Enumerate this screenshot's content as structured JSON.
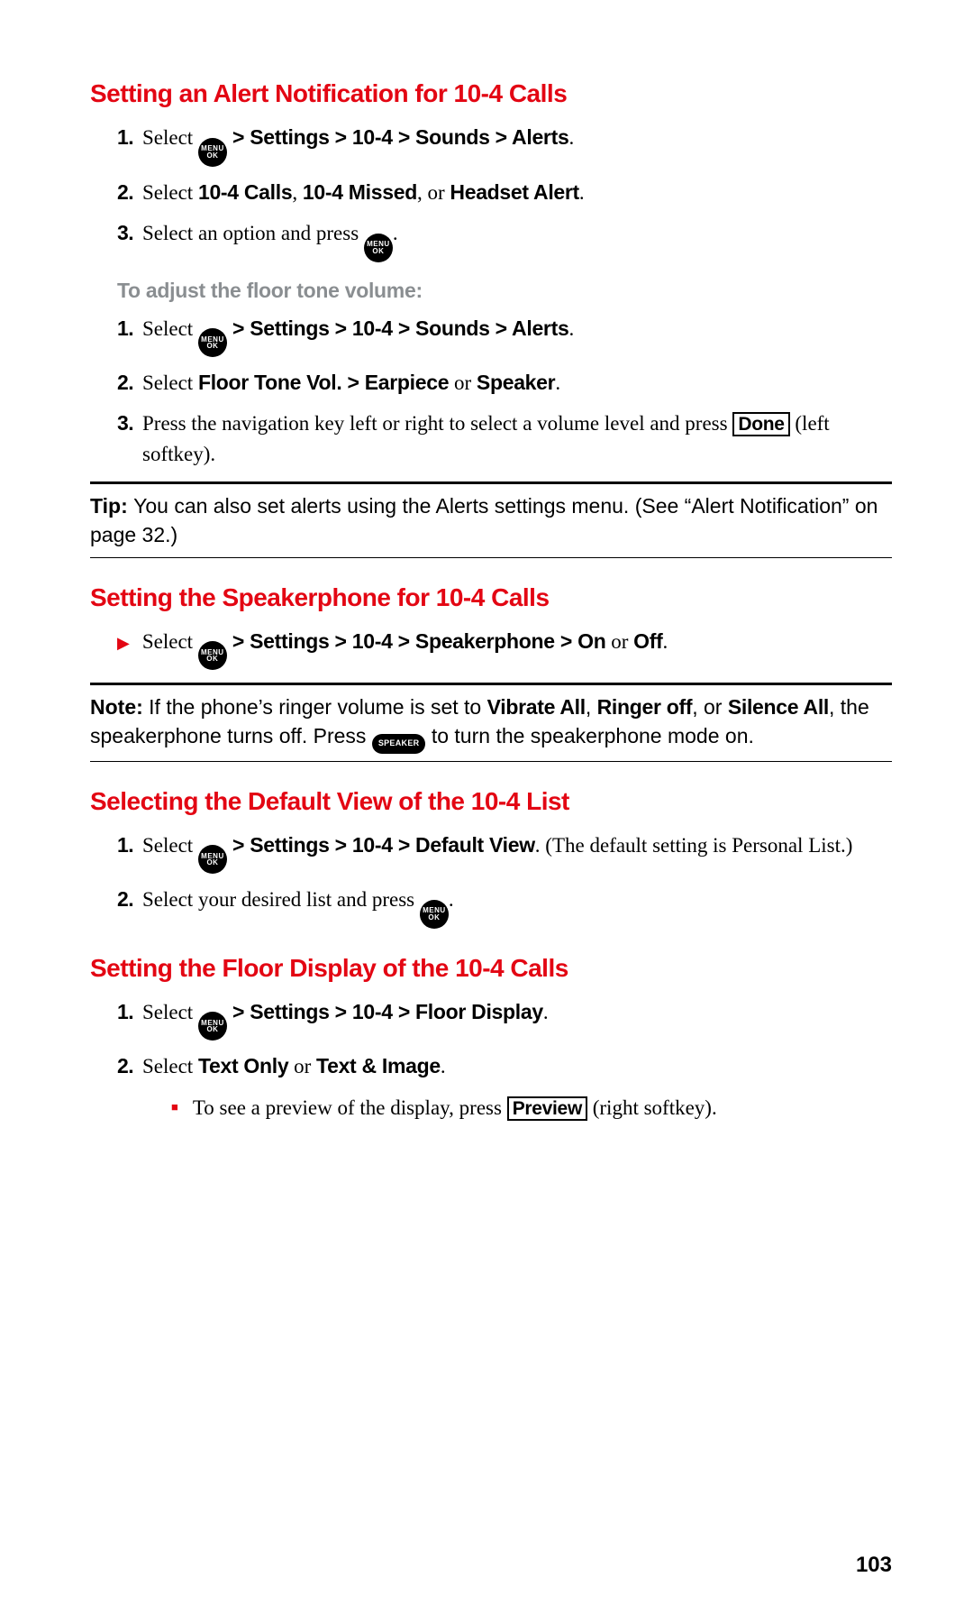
{
  "pageNumber": "103",
  "icons": {
    "menu_top": "MENU",
    "menu_bottom": "OK",
    "speaker": "SPEAKER"
  },
  "keys": {
    "done": "Done",
    "preview": "Preview"
  },
  "section1": {
    "title": "Setting an Alert Notification for 10-4 Calls",
    "steps": [
      {
        "num": "1.",
        "pre": "Select ",
        "path": " > Settings > 10-4 > Sounds > Alerts",
        "post": "."
      },
      {
        "num": "2.",
        "pre": "Select ",
        "b1": "10-4 Calls",
        "mid1": ", ",
        "b2": "10-4 Missed",
        "mid2": ", or ",
        "b3": "Headset Alert",
        "post": "."
      },
      {
        "num": "3.",
        "pre": "Select an option and press ",
        "post": "."
      }
    ],
    "subhead": "To adjust the floor tone volume:",
    "steps2": [
      {
        "num": "1.",
        "pre": "Select ",
        "path": " > Settings > 10-4 > Sounds > Alerts",
        "post": "."
      },
      {
        "num": "2.",
        "pre": "Select ",
        "b1": "Floor Tone Vol. > Earpiece",
        "mid": " or ",
        "b2": "Speaker",
        "post": "."
      },
      {
        "num": "3.",
        "text_a": "Press the navigation key left or right to select a volume level and press ",
        "text_b": " (left softkey)."
      }
    ],
    "tip": {
      "label": "Tip: ",
      "text": "You can also set alerts using the Alerts settings menu. (See “Alert Notification” on page 32.)"
    }
  },
  "section2": {
    "title": "Setting the Speakerphone for 10-4 Calls",
    "bullet": {
      "pre": "Select ",
      "path": " > Settings > 10-4 > Speakerphone > On",
      "mid": " or ",
      "b2": "Off",
      "post": "."
    },
    "note": {
      "label": "Note: ",
      "a": "If the phone’s ringer volume is set to ",
      "b1": "Vibrate All",
      "c1": ", ",
      "b2": "Ringer off",
      "c2": ", or ",
      "b3": "Silence All",
      "d": ", the speakerphone turns off. Press ",
      "e": " to turn the speakerphone mode on."
    }
  },
  "section3": {
    "title": "Selecting the Default View of the 10-4 List",
    "steps": [
      {
        "num": "1.",
        "pre": "Select ",
        "path": " > Settings > 10-4 > Default View",
        "post": ". (The default setting is Personal List.)"
      },
      {
        "num": "2.",
        "pre": "Select your desired list and press ",
        "post": "."
      }
    ]
  },
  "section4": {
    "title": "Setting the Floor Display of the 10-4 Calls",
    "steps": [
      {
        "num": "1.",
        "pre": "Select ",
        "path": " > Settings > 10-4 > Floor Display",
        "post": "."
      },
      {
        "num": "2.",
        "pre": "Select ",
        "b1": "Text Only",
        "mid": " or ",
        "b2": "Text & Image",
        "post": "."
      }
    ],
    "sub": {
      "a": "To see a preview of the display, press ",
      "b": " (right softkey)."
    }
  }
}
